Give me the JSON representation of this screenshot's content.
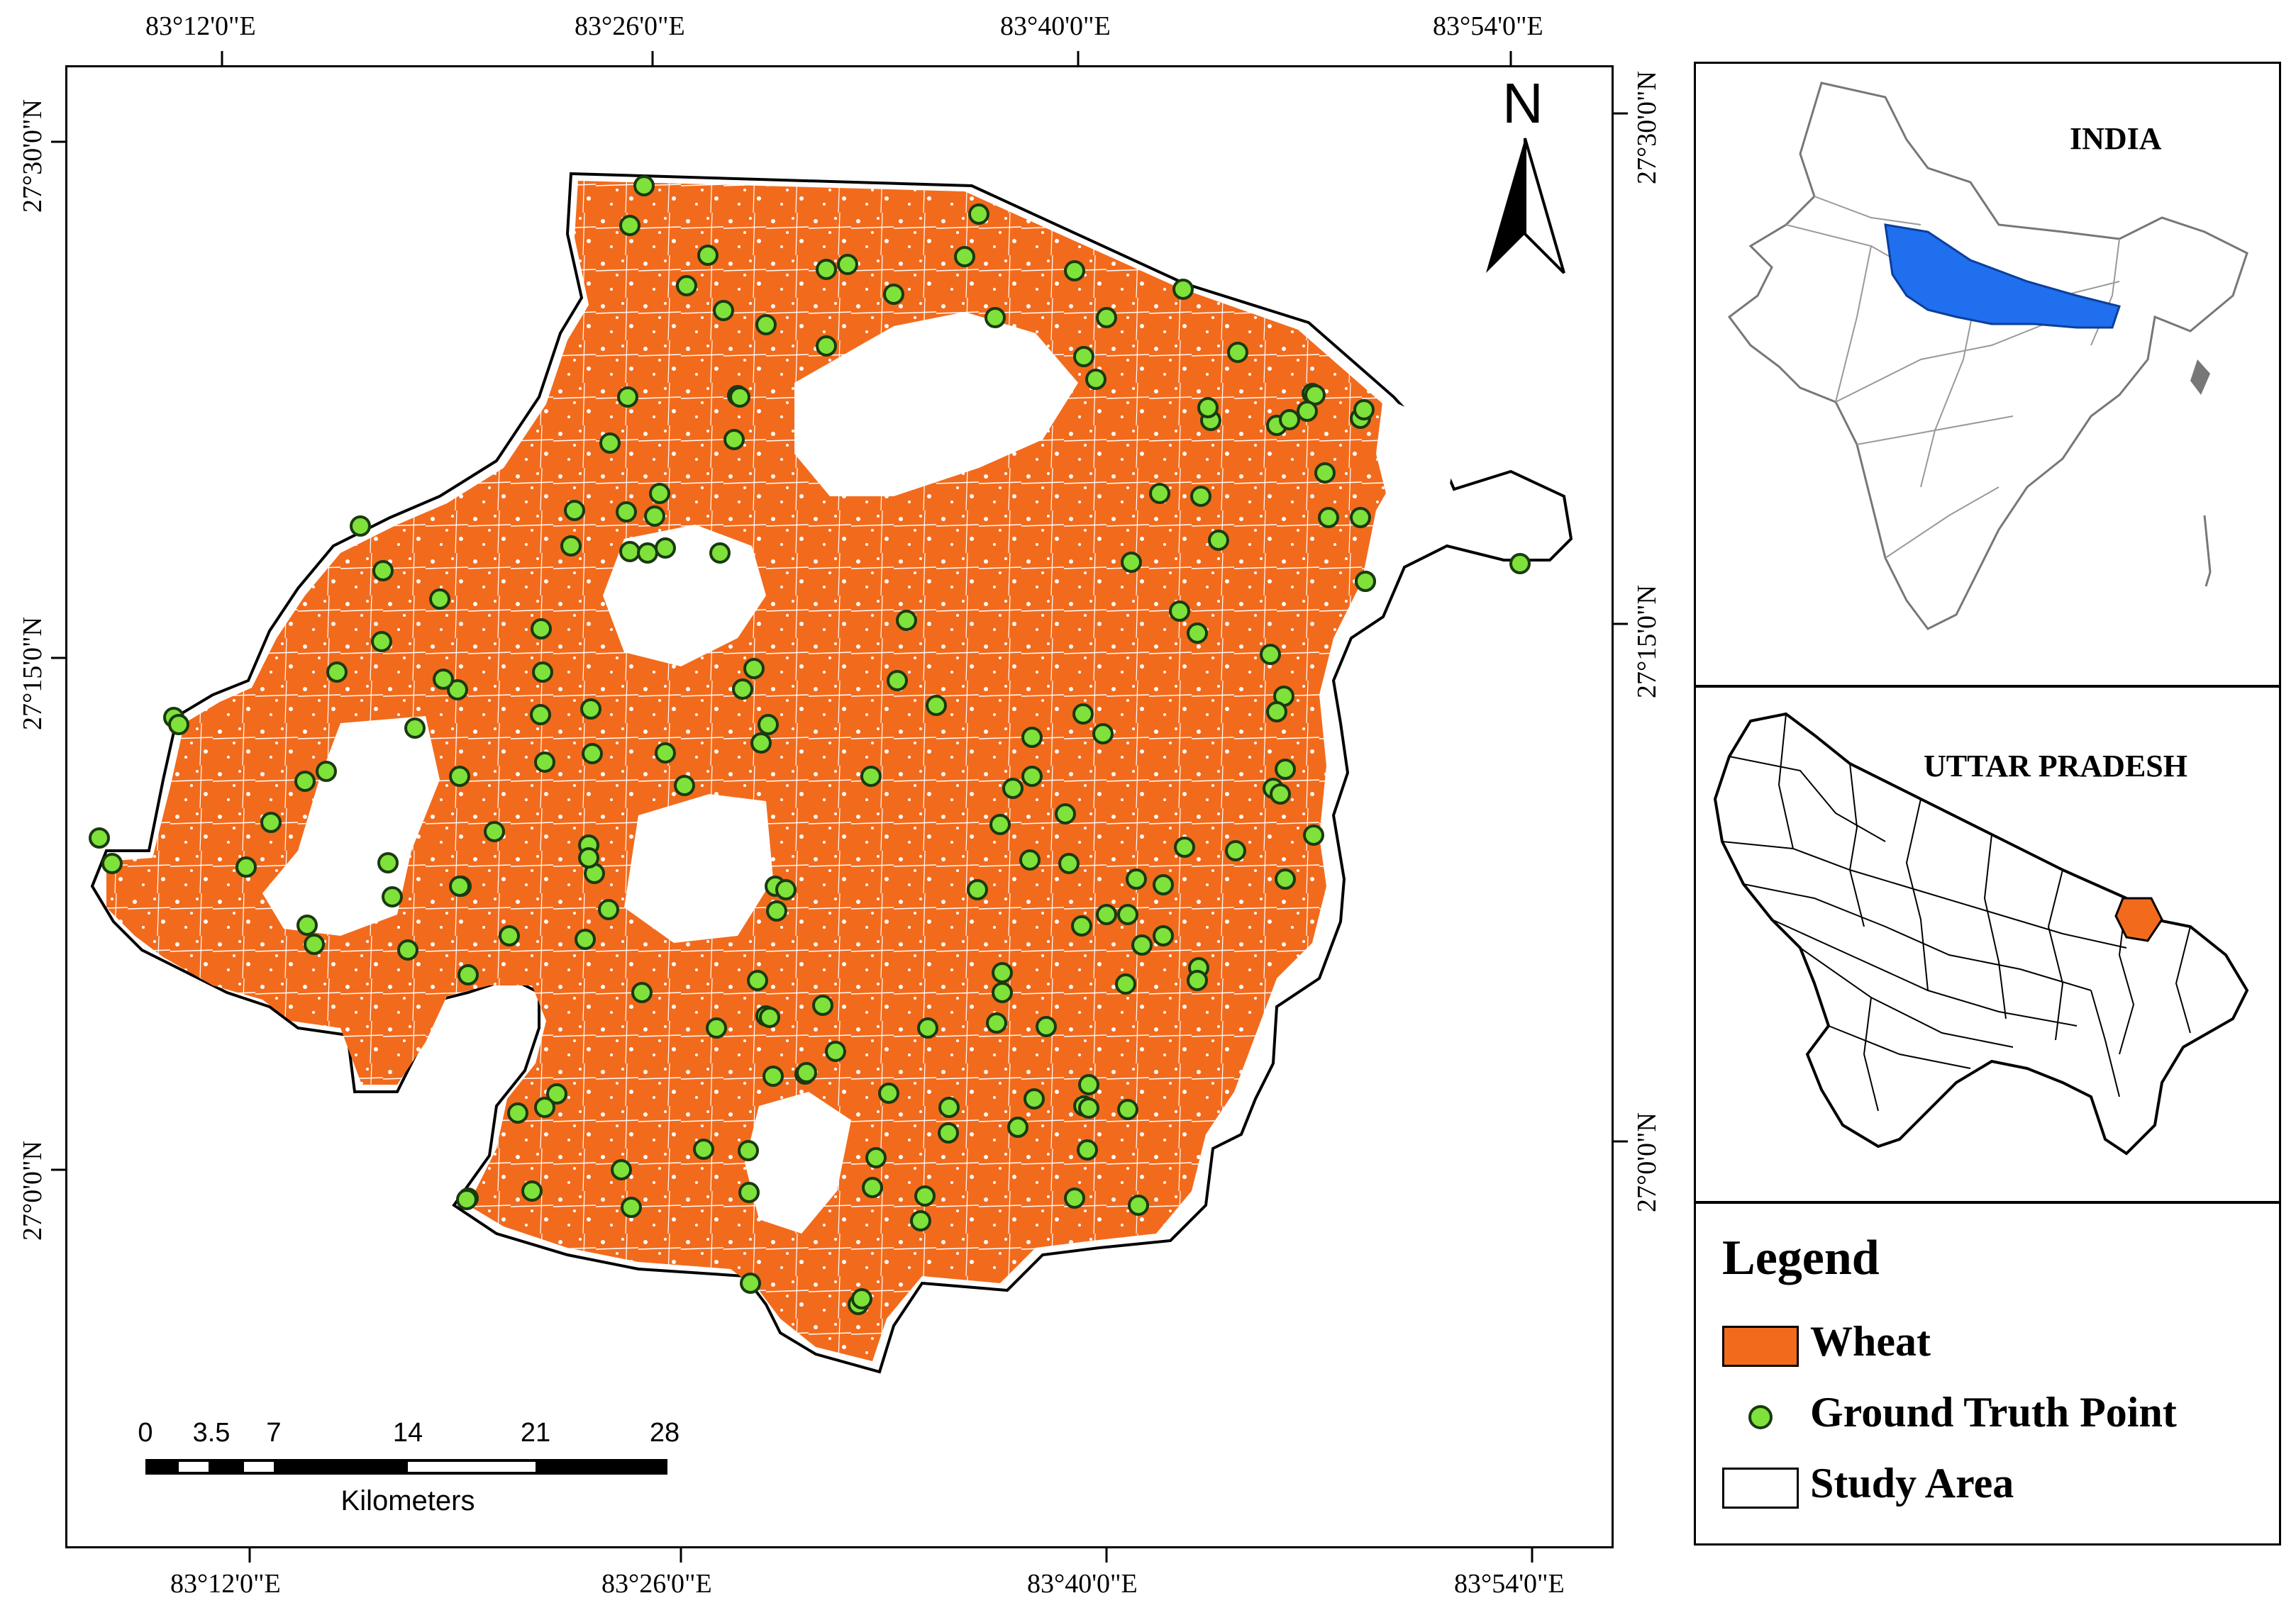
{
  "main_map": {
    "top_longitude_labels": [
      "83°12'0\"E",
      "83°26'0\"E",
      "83°40'0\"E",
      "83°54'0\"E"
    ],
    "bottom_longitude_labels": [
      "83°12'0\"E",
      "83°26'0\"E",
      "83°40'0\"E",
      "83°54'0\"E"
    ],
    "left_latitude_labels": [
      "27°30'0\"N",
      "27°15'0\"N",
      "27°0'0\"N"
    ],
    "right_latitude_labels": [
      "27°30'0\"N",
      "27°15'0\"N",
      "27°0'0\"N"
    ],
    "north_arrow_label": "N",
    "scale_bar": {
      "ticks": [
        "0",
        "3.5",
        "7",
        "14",
        "21",
        "28"
      ],
      "unit": "Kilometers"
    }
  },
  "india_inset": {
    "title": "INDIA",
    "highlight_color": "#1f6fef"
  },
  "up_inset": {
    "title": "UTTAR PRADESH",
    "highlight_color": "#f26b1d"
  },
  "legend": {
    "title": "Legend",
    "items": [
      {
        "label": "Wheat",
        "symbol": "orange-box",
        "color": "#f26b1d"
      },
      {
        "label": "Ground Truth Point",
        "symbol": "green-circle",
        "color": "#7ee23a"
      },
      {
        "label": "Study Area",
        "symbol": "outline-box",
        "color": "#ffffff"
      }
    ]
  },
  "colors": {
    "wheat": "#f26b1d",
    "ground_truth": "#7ee23a",
    "boundary": "#000000",
    "state_highlight": "#1f6fef"
  }
}
